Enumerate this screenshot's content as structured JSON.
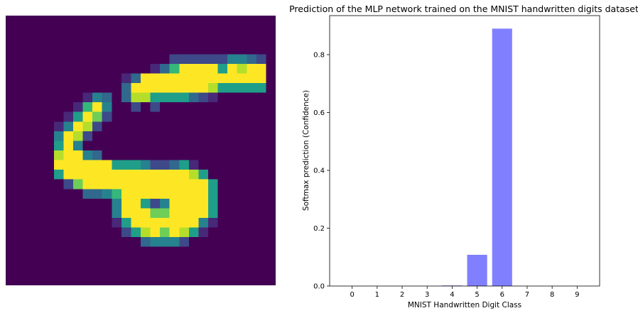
{
  "image_panel": {
    "grid_size": 28,
    "colormap": [
      "#440154",
      "#482878",
      "#3e4989",
      "#31688e",
      "#26828e",
      "#1f9e89",
      "#35b779",
      "#6ece58",
      "#b5de2b",
      "#fde725"
    ],
    "pixels": [
      [
        0,
        0,
        0,
        0,
        0,
        0,
        0,
        0,
        0,
        0,
        0,
        0,
        0,
        0,
        0,
        0,
        0,
        0,
        0,
        0,
        0,
        0,
        0,
        0,
        0,
        0,
        0,
        0
      ],
      [
        0,
        0,
        0,
        0,
        0,
        0,
        0,
        0,
        0,
        0,
        0,
        0,
        0,
        0,
        0,
        0,
        0,
        0,
        0,
        0,
        0,
        0,
        0,
        0,
        0,
        0,
        0,
        0
      ],
      [
        0,
        0,
        0,
        0,
        0,
        0,
        0,
        0,
        0,
        0,
        0,
        0,
        0,
        0,
        0,
        0,
        0,
        0,
        0,
        0,
        0,
        0,
        0,
        0,
        0,
        0,
        0,
        0
      ],
      [
        0,
        0,
        0,
        0,
        0,
        0,
        0,
        0,
        0,
        0,
        0,
        0,
        0,
        0,
        0,
        0,
        0,
        0,
        0,
        0,
        0,
        0,
        0,
        0,
        0,
        0,
        0,
        0
      ],
      [
        0,
        0,
        0,
        0,
        0,
        0,
        0,
        0,
        0,
        0,
        0,
        0,
        0,
        0,
        0,
        0,
        0,
        2,
        2,
        2,
        2,
        2,
        2,
        4,
        4,
        3,
        2,
        0
      ],
      [
        0,
        0,
        0,
        0,
        0,
        0,
        0,
        0,
        0,
        0,
        0,
        0,
        0,
        0,
        0,
        1,
        3,
        6,
        9,
        9,
        9,
        9,
        5,
        9,
        8,
        9,
        9,
        0
      ],
      [
        0,
        0,
        0,
        0,
        0,
        0,
        0,
        0,
        0,
        0,
        0,
        0,
        1,
        3,
        9,
        9,
        9,
        9,
        9,
        9,
        9,
        9,
        9,
        9,
        9,
        9,
        9,
        0
      ],
      [
        0,
        0,
        0,
        0,
        0,
        0,
        0,
        0,
        0,
        0,
        0,
        0,
        3,
        9,
        9,
        9,
        9,
        9,
        9,
        9,
        9,
        8,
        5,
        5,
        5,
        5,
        5,
        0
      ],
      [
        0,
        0,
        0,
        0,
        0,
        0,
        0,
        0,
        1,
        4,
        3,
        0,
        3,
        8,
        8,
        5,
        5,
        5,
        5,
        3,
        2,
        1,
        0,
        0,
        0,
        0,
        0,
        0
      ],
      [
        0,
        0,
        0,
        0,
        0,
        0,
        0,
        1,
        6,
        9,
        4,
        0,
        0,
        2,
        0,
        2,
        0,
        0,
        0,
        0,
        0,
        0,
        0,
        0,
        0,
        0,
        0,
        0
      ],
      [
        0,
        0,
        0,
        0,
        0,
        0,
        1,
        5,
        9,
        7,
        2,
        0,
        0,
        0,
        0,
        0,
        0,
        0,
        0,
        0,
        0,
        0,
        0,
        0,
        0,
        0,
        0,
        0
      ],
      [
        0,
        0,
        0,
        0,
        0,
        1,
        4,
        9,
        8,
        2,
        0,
        0,
        0,
        0,
        0,
        0,
        0,
        0,
        0,
        0,
        0,
        0,
        0,
        0,
        0,
        0,
        0,
        0
      ],
      [
        0,
        0,
        0,
        0,
        0,
        4,
        9,
        8,
        2,
        0,
        0,
        0,
        0,
        0,
        0,
        0,
        0,
        0,
        0,
        0,
        0,
        0,
        0,
        0,
        0,
        0,
        0,
        0
      ],
      [
        0,
        0,
        0,
        0,
        0,
        5,
        9,
        4,
        0,
        0,
        0,
        0,
        0,
        0,
        0,
        0,
        0,
        0,
        0,
        0,
        0,
        0,
        0,
        0,
        0,
        0,
        0,
        0
      ],
      [
        0,
        0,
        0,
        0,
        0,
        8,
        9,
        9,
        4,
        3,
        0,
        0,
        0,
        0,
        0,
        0,
        0,
        0,
        0,
        0,
        0,
        0,
        0,
        0,
        0,
        0,
        0,
        0
      ],
      [
        0,
        0,
        0,
        0,
        0,
        9,
        9,
        9,
        9,
        9,
        9,
        5,
        5,
        5,
        4,
        2,
        2,
        3,
        5,
        1,
        0,
        0,
        0,
        0,
        0,
        0,
        0,
        0
      ],
      [
        0,
        0,
        0,
        0,
        0,
        5,
        9,
        9,
        9,
        9,
        9,
        9,
        9,
        9,
        9,
        9,
        9,
        9,
        9,
        8,
        5,
        0,
        0,
        0,
        0,
        0,
        0,
        0
      ],
      [
        0,
        0,
        0,
        0,
        0,
        0,
        2,
        7,
        9,
        9,
        9,
        9,
        9,
        9,
        9,
        9,
        9,
        9,
        9,
        9,
        9,
        5,
        0,
        0,
        0,
        0,
        0,
        0
      ],
      [
        0,
        0,
        0,
        0,
        0,
        0,
        0,
        0,
        3,
        3,
        4,
        6,
        9,
        9,
        9,
        9,
        9,
        9,
        9,
        9,
        9,
        5,
        0,
        0,
        0,
        0,
        0,
        0
      ],
      [
        0,
        0,
        0,
        0,
        0,
        0,
        0,
        0,
        0,
        0,
        0,
        4,
        9,
        9,
        5,
        2,
        4,
        9,
        9,
        9,
        9,
        5,
        0,
        0,
        0,
        0,
        0,
        0
      ],
      [
        0,
        0,
        0,
        0,
        0,
        0,
        0,
        0,
        0,
        0,
        0,
        4,
        9,
        9,
        9,
        7,
        7,
        9,
        9,
        9,
        9,
        5,
        0,
        0,
        0,
        0,
        0,
        0
      ],
      [
        0,
        0,
        0,
        0,
        0,
        0,
        0,
        0,
        0,
        0,
        0,
        1,
        5,
        9,
        9,
        9,
        9,
        9,
        9,
        9,
        4,
        1,
        0,
        0,
        0,
        0,
        0,
        0
      ],
      [
        0,
        0,
        0,
        0,
        0,
        0,
        0,
        0,
        0,
        0,
        0,
        0,
        2,
        5,
        8,
        9,
        7,
        9,
        8,
        5,
        1,
        0,
        0,
        0,
        0,
        0,
        0,
        0
      ],
      [
        0,
        0,
        0,
        0,
        0,
        0,
        0,
        0,
        0,
        0,
        0,
        0,
        0,
        0,
        3,
        4,
        4,
        4,
        2,
        0,
        0,
        0,
        0,
        0,
        0,
        0,
        0,
        0
      ],
      [
        0,
        0,
        0,
        0,
        0,
        0,
        0,
        0,
        0,
        0,
        0,
        0,
        0,
        0,
        0,
        0,
        0,
        0,
        0,
        0,
        0,
        0,
        0,
        0,
        0,
        0,
        0,
        0
      ],
      [
        0,
        0,
        0,
        0,
        0,
        0,
        0,
        0,
        0,
        0,
        0,
        0,
        0,
        0,
        0,
        0,
        0,
        0,
        0,
        0,
        0,
        0,
        0,
        0,
        0,
        0,
        0,
        0
      ],
      [
        0,
        0,
        0,
        0,
        0,
        0,
        0,
        0,
        0,
        0,
        0,
        0,
        0,
        0,
        0,
        0,
        0,
        0,
        0,
        0,
        0,
        0,
        0,
        0,
        0,
        0,
        0,
        0
      ],
      [
        0,
        0,
        0,
        0,
        0,
        0,
        0,
        0,
        0,
        0,
        0,
        0,
        0,
        0,
        0,
        0,
        0,
        0,
        0,
        0,
        0,
        0,
        0,
        0,
        0,
        0,
        0,
        0
      ]
    ]
  },
  "chart_data": {
    "type": "bar",
    "title": "Prediction of the MLP network trained on the MNIST handwritten digits dataset",
    "xlabel": "MNIST Handwritten Digit Class",
    "ylabel": "Softmax prediction (Confidence)",
    "categories": [
      "0",
      "1",
      "2",
      "3",
      "4",
      "5",
      "6",
      "7",
      "8",
      "9"
    ],
    "values": [
      0.0,
      0.0,
      0.0,
      0.0,
      0.002,
      0.108,
      0.89,
      0.0,
      0.0,
      0.0
    ],
    "ylim": [
      0,
      0.935
    ],
    "xlim": [
      -0.9,
      9.9
    ],
    "yticks": [
      "0.0",
      "0.2",
      "0.4",
      "0.6",
      "0.8"
    ],
    "ytick_values": [
      0.0,
      0.2,
      0.4,
      0.6,
      0.8
    ],
    "bar_color": "#8080ff",
    "grid": false
  }
}
